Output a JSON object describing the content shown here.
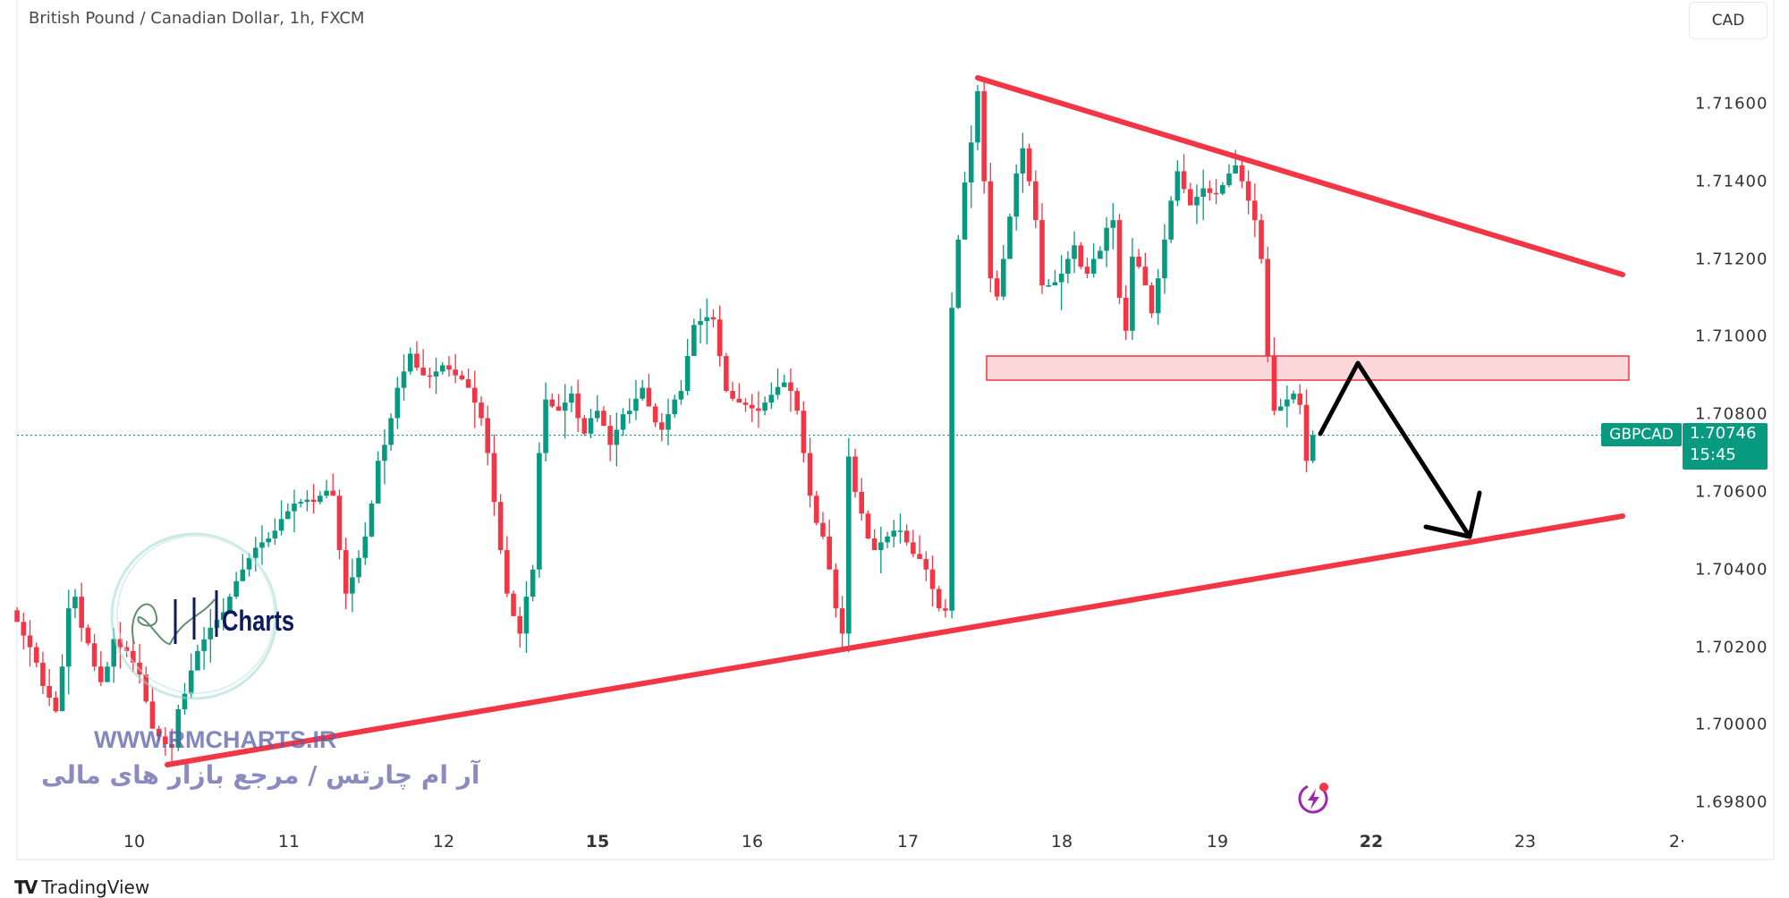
{
  "header": {
    "title": "British Pound / Canadian Dollar, 1h, FXCM",
    "currency": "CAD"
  },
  "price_axis": {
    "ticks": [
      "1.71600",
      "1.71400",
      "1.71200",
      "1.71000",
      "1.70800",
      "1.70600",
      "1.70400",
      "1.70200",
      "1.70000",
      "1.69800"
    ]
  },
  "time_axis": {
    "ticks": [
      {
        "label": "10",
        "bold": false
      },
      {
        "label": "11",
        "bold": false
      },
      {
        "label": "12",
        "bold": false
      },
      {
        "label": "15",
        "bold": true
      },
      {
        "label": "16",
        "bold": false
      },
      {
        "label": "17",
        "bold": false
      },
      {
        "label": "18",
        "bold": false
      },
      {
        "label": "19",
        "bold": false
      },
      {
        "label": "22",
        "bold": true
      },
      {
        "label": "23",
        "bold": false
      },
      {
        "label": "2·",
        "bold": false
      }
    ]
  },
  "last_price": {
    "symbol": "GBPCAD",
    "price": "1.70746",
    "countdown": "15:45",
    "value": 1.70746
  },
  "watermark": {
    "brand": "Charts",
    "url": "WWW.RMCHARTS.IR",
    "tagline": "آر ام چارتس / مرجع بازار های مالی"
  },
  "footer": {
    "brand": "TradingView"
  },
  "colors": {
    "up": "#089981",
    "down": "#f23645",
    "trendline": "#f23645",
    "zone": "#f23645",
    "arrow": "#000000",
    "accent": "#9c27b0"
  },
  "chart_data": {
    "type": "candlestick",
    "symbol": "GBPCAD",
    "interval": "1h",
    "ylim": [
      1.69752,
      1.71867
    ],
    "closes": [
      1.70265,
      1.7023,
      1.702,
      1.7016,
      1.701,
      1.7007,
      1.70035,
      1.7015,
      1.703,
      1.7033,
      1.7025,
      1.7021,
      1.7015,
      1.7011,
      1.7015,
      1.70221,
      1.702,
      1.7019,
      1.7016,
      1.7013,
      1.7006,
      1.6999,
      1.6997,
      1.6995,
      1.69941,
      1.7004,
      1.7008,
      1.7014,
      1.7019,
      1.7022,
      1.7025,
      1.7027,
      1.7029,
      1.7033,
      1.7037,
      1.704,
      1.7043,
      1.70456,
      1.7047,
      1.7048,
      1.705,
      1.7053,
      1.7055,
      1.7057,
      1.70574,
      1.7058,
      1.70574,
      1.7059,
      1.70603,
      1.7059,
      1.7045,
      1.70338,
      1.7038,
      1.7043,
      1.70485,
      1.7057,
      1.7068,
      1.70721,
      1.7079,
      1.70868,
      1.7091,
      1.70956,
      1.7092,
      1.709,
      1.70897,
      1.7091,
      1.70926,
      1.70915,
      1.709,
      1.7089,
      1.70868,
      1.7083,
      1.7079,
      1.707,
      1.70574,
      1.7045,
      1.70338,
      1.7028,
      1.70235,
      1.7033,
      1.704,
      1.707,
      1.70838,
      1.7082,
      1.70809,
      1.7083,
      1.70853,
      1.7079,
      1.7075,
      1.7079,
      1.70809,
      1.7077,
      1.70721,
      1.7076,
      1.708,
      1.70809,
      1.7084,
      1.70868,
      1.7082,
      1.70779,
      1.7076,
      1.708,
      1.70838,
      1.7086,
      1.7095,
      1.7103,
      1.7104,
      1.7105,
      1.71044,
      1.7095,
      1.7086,
      1.7084,
      1.7083,
      1.70824,
      1.70815,
      1.70809,
      1.7083,
      1.7085,
      1.7087,
      1.70882,
      1.7086,
      1.70809,
      1.707,
      1.7059,
      1.7052,
      1.70485,
      1.704,
      1.703,
      1.70235,
      1.70691,
      1.706,
      1.70544,
      1.7048,
      1.7045,
      1.7047,
      1.70485,
      1.705,
      1.705,
      1.7047,
      1.7044,
      1.70427,
      1.704,
      1.7035,
      1.703,
      1.70294,
      1.71074,
      1.7125,
      1.71397,
      1.715,
      1.71632,
      1.714,
      1.7115,
      1.71103,
      1.712,
      1.71309,
      1.7142,
      1.71485,
      1.714,
      1.713,
      1.71132,
      1.71132,
      1.7114,
      1.71162,
      1.712,
      1.71235,
      1.7118,
      1.71162,
      1.712,
      1.71221,
      1.7128,
      1.713,
      1.711,
      1.71015,
      1.71206,
      1.7118,
      1.71132,
      1.7106,
      1.7115,
      1.7125,
      1.7135,
      1.71426,
      1.7138,
      1.71338,
      1.7136,
      1.71382,
      1.7137,
      1.71368,
      1.7139,
      1.7142,
      1.71441,
      1.714,
      1.7135,
      1.713,
      1.712,
      1.7095,
      1.70809,
      1.7082,
      1.70838,
      1.70853,
      1.70824,
      1.7068,
      1.70746
    ],
    "grid": false
  }
}
